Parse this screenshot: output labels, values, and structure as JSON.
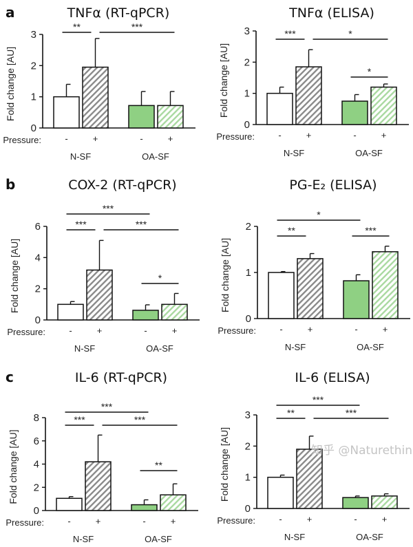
{
  "colors": {
    "nsf_fill": "#ffffff",
    "nsf_hatch": "#8a8a8a",
    "oasf_fill": "#8fd083",
    "oasf_hatch": "#a9d9a0",
    "axis": "#111111"
  },
  "watermark": "知乎 @Naturethink",
  "chart_data": [
    {
      "panel_label": "a",
      "title": "TNFα (RT-qPCR)",
      "type": "bar",
      "ylabel": "Fold change [AU]",
      "ylim": [
        0,
        3
      ],
      "yticks": [
        0,
        1,
        2,
        3
      ],
      "row_label": "Pressure:",
      "categories": [
        "-",
        "+",
        "-",
        "+"
      ],
      "groups": [
        "N-SF",
        "OA-SF"
      ],
      "values": [
        1.0,
        1.95,
        0.72,
        0.72
      ],
      "errors": [
        0.4,
        0.92,
        0.45,
        0.45
      ],
      "significance": [
        {
          "between": [
            0,
            1
          ],
          "label": "**",
          "tier": 1
        },
        {
          "between": [
            1,
            3
          ],
          "label": "***",
          "tier": 1
        }
      ]
    },
    {
      "panel_label": "",
      "title": "TNFα (ELISA)",
      "type": "bar",
      "ylabel": "Fold change [AU]",
      "ylim": [
        0,
        3
      ],
      "yticks": [
        0,
        1,
        2,
        3
      ],
      "row_label": "Pressure:",
      "categories": [
        "-",
        "+",
        "-",
        "+"
      ],
      "groups": [
        "N-SF",
        "OA-SF"
      ],
      "values": [
        1.0,
        1.85,
        0.75,
        1.2
      ],
      "errors": [
        0.2,
        0.55,
        0.21,
        0.1
      ],
      "significance": [
        {
          "between": [
            0,
            1
          ],
          "label": "***",
          "tier": 1
        },
        {
          "between": [
            1,
            3
          ],
          "label": "*",
          "tier": 1
        },
        {
          "between": [
            2,
            3
          ],
          "label": "*",
          "tier": 0
        }
      ]
    },
    {
      "panel_label": "b",
      "title": "COX-2 (RT-qPCR)",
      "type": "bar",
      "ylabel": "Fold change [AU]",
      "ylim": [
        0,
        6
      ],
      "yticks": [
        0,
        2,
        4,
        6
      ],
      "row_label": "Pressure:",
      "categories": [
        "-",
        "+",
        "-",
        "+"
      ],
      "groups": [
        "N-SF",
        "OA-SF"
      ],
      "values": [
        1.0,
        3.2,
        0.62,
        1.0
      ],
      "errors": [
        0.18,
        1.9,
        0.35,
        0.7
      ],
      "significance": [
        {
          "between": [
            0,
            2
          ],
          "label": "***",
          "tier": 2
        },
        {
          "between": [
            0,
            1
          ],
          "label": "***",
          "tier": 1
        },
        {
          "between": [
            1,
            3
          ],
          "label": "***",
          "tier": 1
        },
        {
          "between": [
            2,
            3
          ],
          "label": "*",
          "tier": 0
        }
      ]
    },
    {
      "panel_label": "",
      "title": "PG-E₂ (ELISA)",
      "type": "bar",
      "ylabel": "Fold change [AU]",
      "ylim": [
        0,
        2
      ],
      "yticks": [
        0,
        1,
        2
      ],
      "row_label": "Pressure:",
      "categories": [
        "-",
        "+",
        "-",
        "+"
      ],
      "groups": [
        "N-SF",
        "OA-SF"
      ],
      "values": [
        1.0,
        1.3,
        0.82,
        1.45
      ],
      "errors": [
        0.02,
        0.11,
        0.13,
        0.12
      ],
      "significance": [
        {
          "between": [
            0,
            2
          ],
          "label": "*",
          "tier": 2
        },
        {
          "between": [
            0,
            1
          ],
          "label": "**",
          "tier": 0
        },
        {
          "between": [
            2,
            3
          ],
          "label": "***",
          "tier": 0
        }
      ]
    },
    {
      "panel_label": "c",
      "title": "IL-6 (RT-qPCR)",
      "type": "bar",
      "ylabel": "Fold change [AU]",
      "ylim": [
        0,
        8
      ],
      "yticks": [
        0,
        2,
        4,
        6,
        8
      ],
      "row_label": "Pressure:",
      "categories": [
        "-",
        "+",
        "-",
        "+"
      ],
      "groups": [
        "N-SF",
        "OA-SF"
      ],
      "values": [
        1.05,
        4.2,
        0.5,
        1.35
      ],
      "errors": [
        0.15,
        2.3,
        0.42,
        0.95
      ],
      "significance": [
        {
          "between": [
            0,
            2
          ],
          "label": "***",
          "tier": 2
        },
        {
          "between": [
            0,
            1
          ],
          "label": "***",
          "tier": 1
        },
        {
          "between": [
            1,
            3
          ],
          "label": "***",
          "tier": 1
        },
        {
          "between": [
            2,
            3
          ],
          "label": "**",
          "tier": 0
        }
      ]
    },
    {
      "panel_label": "",
      "title": "IL-6 (ELISA)",
      "type": "bar",
      "ylabel": "Fold change [AU]",
      "ylim": [
        0,
        3
      ],
      "yticks": [
        0,
        1,
        2,
        3
      ],
      "row_label": "Pressure:",
      "categories": [
        "-",
        "+",
        "-",
        "+"
      ],
      "groups": [
        "N-SF",
        "OA-SF"
      ],
      "values": [
        1.0,
        1.9,
        0.35,
        0.4
      ],
      "errors": [
        0.07,
        0.42,
        0.05,
        0.07
      ],
      "significance": [
        {
          "between": [
            0,
            2
          ],
          "label": "***",
          "tier": 2
        },
        {
          "between": [
            0,
            1
          ],
          "label": "**",
          "tier": 1
        },
        {
          "between": [
            1,
            3
          ],
          "label": "***",
          "tier": 1
        }
      ]
    }
  ]
}
